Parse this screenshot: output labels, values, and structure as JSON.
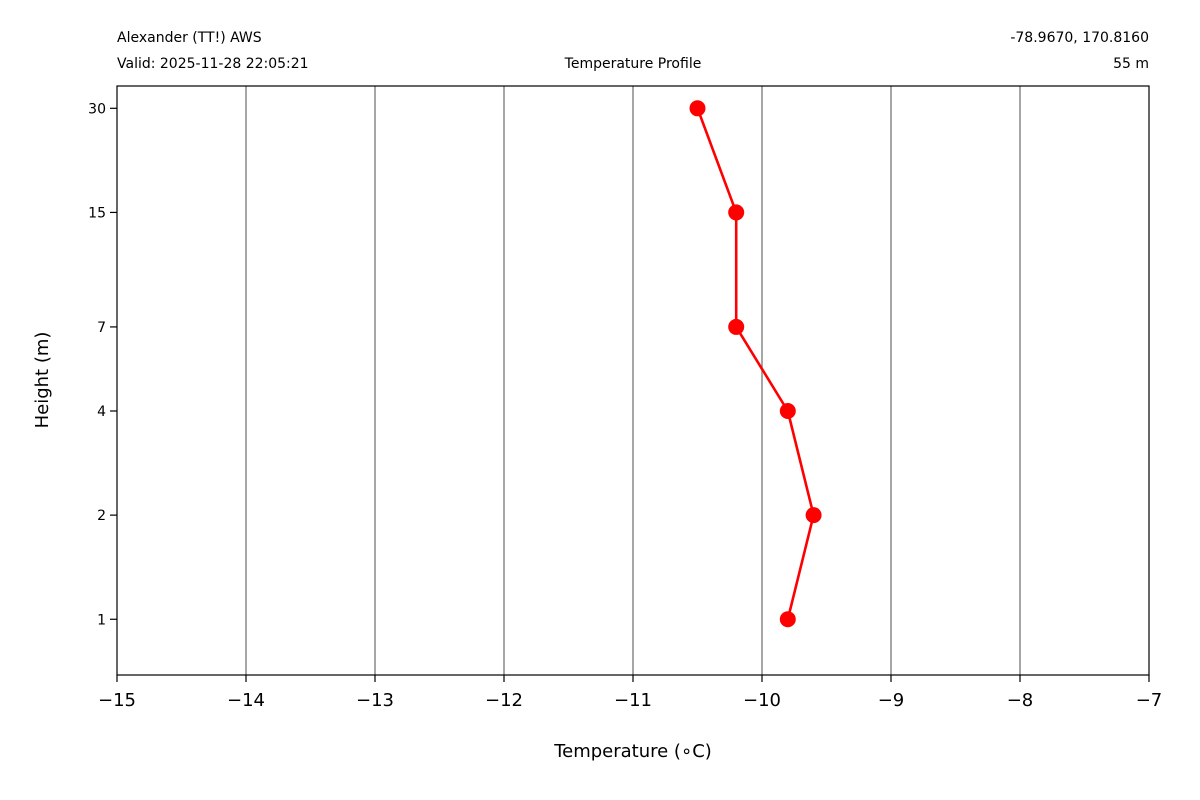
{
  "header": {
    "station": "Alexander (TT!) AWS",
    "valid": "Valid: 2025-11-28 22:05:21",
    "title": "Temperature Profile",
    "coords": "-78.9670, 170.8160",
    "elevation": "55 m"
  },
  "chart_data": {
    "type": "line",
    "title": "Temperature Profile",
    "xlabel": "Temperature (∘C)",
    "ylabel": "Height (m)",
    "xlim": [
      -15,
      -7
    ],
    "x_ticks": [
      -15,
      -14,
      -13,
      -12,
      -11,
      -10,
      -9,
      -8,
      -7
    ],
    "x_tick_labels": [
      "−15",
      "−14",
      "−13",
      "−12",
      "−11",
      "−10",
      "−9",
      "−8",
      "−7"
    ],
    "y_scale": "log",
    "ylim": [
      0.69,
      34.8
    ],
    "y_ticks": [
      1,
      2,
      4,
      7,
      15,
      30
    ],
    "y_tick_labels": [
      "1",
      "2",
      "4",
      "7",
      "15",
      "30"
    ],
    "grid": "vertical",
    "series": [
      {
        "color": "#ff0000",
        "points": [
          {
            "height": 1,
            "temp": -9.8
          },
          {
            "height": 2,
            "temp": -9.6
          },
          {
            "height": 4,
            "temp": -9.8
          },
          {
            "height": 7,
            "temp": -10.2
          },
          {
            "height": 15,
            "temp": -10.2
          },
          {
            "height": 30,
            "temp": -10.5
          }
        ]
      }
    ]
  }
}
